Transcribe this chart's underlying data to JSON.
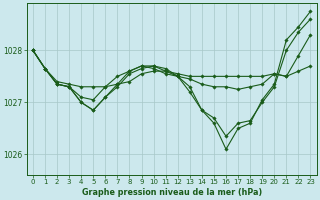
{
  "bg_color": "#cce8ed",
  "line_color": "#1a5c1a",
  "grid_color": "#a8c8c8",
  "title": "Graphe pression niveau de la mer (hPa)",
  "title_color": "#1a5c1a",
  "ylim": [
    1025.6,
    1028.9
  ],
  "yticks": [
    1026,
    1027,
    1028
  ],
  "xticks": [
    0,
    1,
    2,
    3,
    4,
    5,
    6,
    7,
    8,
    9,
    10,
    11,
    12,
    13,
    14,
    15,
    16,
    17,
    18,
    19,
    20,
    21,
    22,
    23
  ],
  "series": [
    [
      1028.0,
      1027.65,
      1027.4,
      1027.35,
      1027.3,
      1027.3,
      1027.3,
      1027.35,
      1027.4,
      1027.55,
      1027.6,
      1027.6,
      1027.55,
      1027.5,
      1027.5,
      1027.5,
      1027.5,
      1027.5,
      1027.5,
      1027.5,
      1027.55,
      1027.5,
      1027.6,
      1027.7
    ],
    [
      1028.0,
      1027.65,
      1027.35,
      1027.3,
      1027.1,
      1027.05,
      1027.3,
      1027.5,
      1027.6,
      1027.7,
      1027.65,
      1027.55,
      1027.5,
      1027.45,
      1027.35,
      1027.3,
      1027.3,
      1027.25,
      1027.3,
      1027.35,
      1027.55,
      1027.5,
      1027.9,
      1028.3
    ],
    [
      1028.0,
      1027.65,
      1027.35,
      1027.3,
      1027.0,
      1026.85,
      1027.1,
      1027.3,
      1027.55,
      1027.65,
      1027.7,
      1027.6,
      1027.5,
      1027.2,
      1026.85,
      1026.7,
      1026.35,
      1026.6,
      1026.65,
      1027.0,
      1027.3,
      1028.0,
      1028.35,
      1028.6
    ],
    [
      1028.0,
      1027.65,
      1027.35,
      1027.3,
      1027.0,
      1026.85,
      1027.1,
      1027.35,
      1027.6,
      1027.7,
      1027.7,
      1027.65,
      1027.5,
      1027.3,
      1026.85,
      1026.6,
      1026.1,
      1026.5,
      1026.6,
      1027.05,
      1027.35,
      1028.2,
      1028.45,
      1028.75
    ]
  ]
}
